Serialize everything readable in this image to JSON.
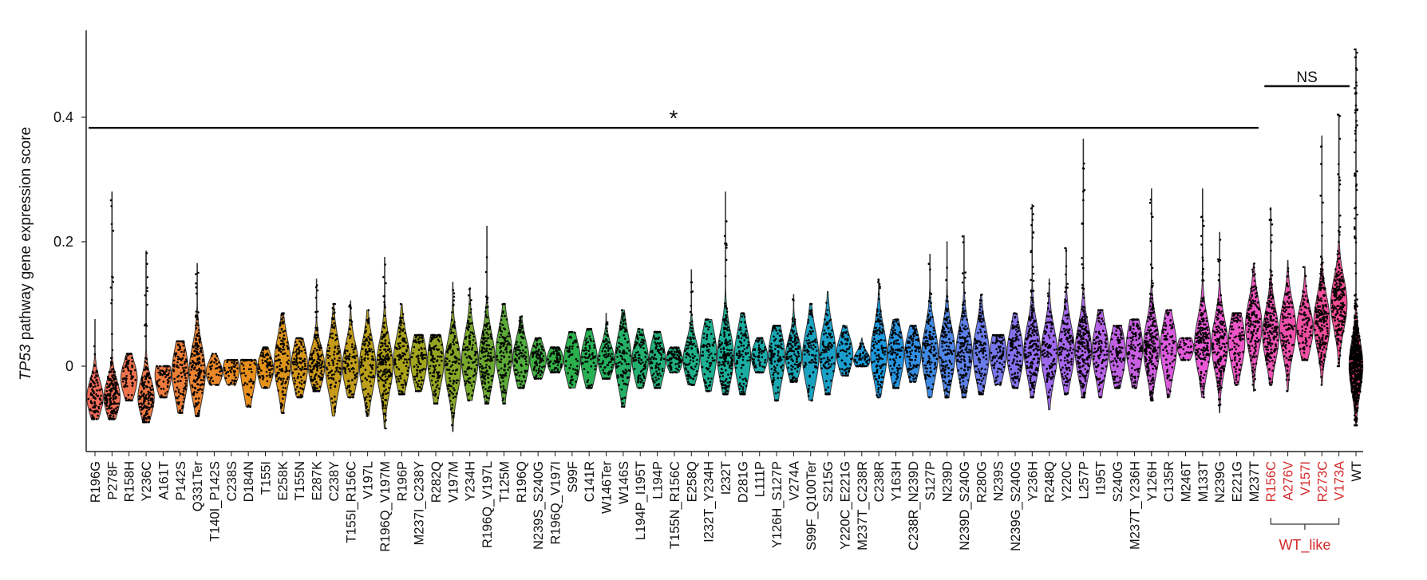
{
  "chart_data": {
    "type": "violin",
    "ylabel_italic": "TP53",
    "ylabel_rest": " pathway gene expression score",
    "yticks": [
      0,
      0.2,
      0.4
    ],
    "ylim": [
      -0.14,
      0.52
    ],
    "categories": [
      "R196G",
      "P278F",
      "R158H",
      "Y236C",
      "A161T",
      "P142S",
      "Q331Ter",
      "T140I_P142S",
      "C238S",
      "D184N",
      "T155I",
      "E258K",
      "T155N",
      "E287K",
      "C238Y",
      "T155I_R156C",
      "V197L",
      "R196Q_V197M",
      "R196P",
      "M237I_C238Y",
      "R282Q",
      "V197M",
      "Y234H",
      "R196Q_V197L",
      "T125M",
      "R196Q",
      "N239S_S240G",
      "R196Q_V197I",
      "S99F",
      "C141R",
      "W146Ter",
      "W146S",
      "L194P_I195T",
      "L194P",
      "T155N_R156C",
      "E258Q",
      "I232T_Y234H",
      "I232T",
      "D281G",
      "L111P",
      "Y126H_S127P",
      "V274A",
      "S99F_Q100Ter",
      "S215G",
      "Y220C_E221G",
      "M237T_C238R",
      "C238R",
      "Y163H",
      "C238R_N239D",
      "S127P",
      "N239D",
      "N239D_S240G",
      "R280G",
      "N239S",
      "N239G_S240G",
      "Y236H",
      "R248Q",
      "Y220C",
      "L257P",
      "I195T",
      "S240G",
      "M237T_Y236H",
      "Y126H",
      "C135R",
      "M246T",
      "M133T",
      "N239G",
      "E221G",
      "M237T",
      "R156C",
      "A276V",
      "V157I",
      "R273C",
      "V173A",
      "WT"
    ],
    "highlight_categories": [
      "R156C",
      "A276V",
      "V157I",
      "R273C",
      "V173A"
    ],
    "violins": [
      {
        "median": -0.05,
        "min": -0.085,
        "max": 0.075
      },
      {
        "median": -0.05,
        "min": -0.085,
        "max": 0.28
      },
      {
        "median": -0.02,
        "min": -0.055,
        "max": 0.02
      },
      {
        "median": -0.05,
        "min": -0.09,
        "max": 0.185
      },
      {
        "median": -0.015,
        "min": -0.05,
        "max": 0.0
      },
      {
        "median": -0.01,
        "min": -0.075,
        "max": 0.04
      },
      {
        "median": -0.01,
        "min": -0.08,
        "max": 0.165
      },
      {
        "median": -0.01,
        "min": -0.03,
        "max": 0.02
      },
      {
        "median": -0.005,
        "min": -0.03,
        "max": 0.01
      },
      {
        "median": 0.0,
        "min": -0.065,
        "max": 0.01
      },
      {
        "median": -0.005,
        "min": -0.035,
        "max": 0.03
      },
      {
        "median": 0.005,
        "min": -0.075,
        "max": 0.085
      },
      {
        "median": 0.0,
        "min": -0.05,
        "max": 0.045
      },
      {
        "median": 0.0,
        "min": -0.04,
        "max": 0.14
      },
      {
        "median": 0.0,
        "min": -0.08,
        "max": 0.1
      },
      {
        "median": 0.0,
        "min": -0.05,
        "max": 0.105
      },
      {
        "median": 0.0,
        "min": -0.08,
        "max": 0.09
      },
      {
        "median": 0.0,
        "min": -0.1,
        "max": 0.175
      },
      {
        "median": 0.01,
        "min": -0.045,
        "max": 0.1
      },
      {
        "median": 0.01,
        "min": -0.04,
        "max": 0.05
      },
      {
        "median": 0.01,
        "min": -0.06,
        "max": 0.05
      },
      {
        "median": 0.0,
        "min": -0.105,
        "max": 0.135
      },
      {
        "median": 0.01,
        "min": -0.055,
        "max": 0.125
      },
      {
        "median": 0.01,
        "min": -0.06,
        "max": 0.225
      },
      {
        "median": 0.02,
        "min": -0.06,
        "max": 0.1
      },
      {
        "median": 0.01,
        "min": -0.035,
        "max": 0.08
      },
      {
        "median": 0.01,
        "min": -0.02,
        "max": 0.045
      },
      {
        "median": 0.01,
        "min": -0.01,
        "max": 0.03
      },
      {
        "median": 0.01,
        "min": -0.035,
        "max": 0.055
      },
      {
        "median": 0.01,
        "min": -0.035,
        "max": 0.06
      },
      {
        "median": 0.01,
        "min": -0.02,
        "max": 0.085
      },
      {
        "median": 0.01,
        "min": -0.065,
        "max": 0.09
      },
      {
        "median": 0.01,
        "min": -0.035,
        "max": 0.06
      },
      {
        "median": 0.01,
        "min": -0.035,
        "max": 0.055
      },
      {
        "median": 0.01,
        "min": -0.01,
        "max": 0.03
      },
      {
        "median": 0.01,
        "min": -0.03,
        "max": 0.155
      },
      {
        "median": 0.02,
        "min": -0.04,
        "max": 0.075
      },
      {
        "median": 0.015,
        "min": -0.045,
        "max": 0.28
      },
      {
        "median": 0.015,
        "min": -0.045,
        "max": 0.085
      },
      {
        "median": 0.015,
        "min": -0.01,
        "max": 0.045
      },
      {
        "median": 0.015,
        "min": -0.055,
        "max": 0.065
      },
      {
        "median": 0.015,
        "min": -0.025,
        "max": 0.115
      },
      {
        "median": 0.015,
        "min": -0.055,
        "max": 0.1
      },
      {
        "median": 0.02,
        "min": -0.045,
        "max": 0.12
      },
      {
        "median": 0.02,
        "min": -0.015,
        "max": 0.065
      },
      {
        "median": 0.01,
        "min": 0.0,
        "max": 0.045
      },
      {
        "median": 0.02,
        "min": -0.05,
        "max": 0.14
      },
      {
        "median": 0.02,
        "min": -0.035,
        "max": 0.075
      },
      {
        "median": 0.02,
        "min": -0.025,
        "max": 0.065
      },
      {
        "median": 0.02,
        "min": -0.05,
        "max": 0.18
      },
      {
        "median": 0.02,
        "min": -0.05,
        "max": 0.2
      },
      {
        "median": 0.02,
        "min": -0.05,
        "max": 0.21
      },
      {
        "median": 0.02,
        "min": -0.045,
        "max": 0.115
      },
      {
        "median": 0.02,
        "min": -0.03,
        "max": 0.05
      },
      {
        "median": 0.02,
        "min": -0.035,
        "max": 0.085
      },
      {
        "median": 0.025,
        "min": -0.05,
        "max": 0.26
      },
      {
        "median": 0.02,
        "min": -0.07,
        "max": 0.14
      },
      {
        "median": 0.025,
        "min": -0.045,
        "max": 0.19
      },
      {
        "median": 0.025,
        "min": -0.05,
        "max": 0.365
      },
      {
        "median": 0.025,
        "min": -0.05,
        "max": 0.09
      },
      {
        "median": 0.02,
        "min": -0.035,
        "max": 0.065
      },
      {
        "median": 0.03,
        "min": -0.035,
        "max": 0.075
      },
      {
        "median": 0.03,
        "min": -0.055,
        "max": 0.285
      },
      {
        "median": 0.03,
        "min": -0.05,
        "max": 0.09
      },
      {
        "median": 0.03,
        "min": 0.01,
        "max": 0.045
      },
      {
        "median": 0.035,
        "min": -0.05,
        "max": 0.285
      },
      {
        "median": 0.035,
        "min": -0.075,
        "max": 0.215
      },
      {
        "median": 0.04,
        "min": -0.03,
        "max": 0.085
      },
      {
        "median": 0.065,
        "min": -0.04,
        "max": 0.165
      },
      {
        "median": 0.05,
        "min": -0.03,
        "max": 0.255
      },
      {
        "median": 0.06,
        "min": -0.04,
        "max": 0.17
      },
      {
        "median": 0.06,
        "min": 0.01,
        "max": 0.16
      },
      {
        "median": 0.07,
        "min": -0.03,
        "max": 0.37
      },
      {
        "median": 0.1,
        "min": 0.0,
        "max": 0.405
      },
      {
        "median": 0.0,
        "min": -0.095,
        "max": 0.51
      }
    ],
    "annotations": [
      {
        "label": "*",
        "from": "R196G",
        "to": "M237T",
        "y": 0.383
      },
      {
        "label": "NS",
        "from": "R156C",
        "to": "WT",
        "y": 0.45
      }
    ],
    "group_bracket": {
      "label": "WT_like",
      "from": "R156C",
      "to": "V173A"
    },
    "colors": {
      "start": "#f06a5a",
      "orange": "#e8901a",
      "olive": "#a8a41a",
      "green": "#2ab04a",
      "teal": "#1ab09a",
      "blue": "#1a98e0",
      "purple": "#9a6af0",
      "magenta": "#e858d8",
      "pink": "#f54a8a",
      "highlight_text": "#d42a2a",
      "points": "#000000"
    }
  }
}
